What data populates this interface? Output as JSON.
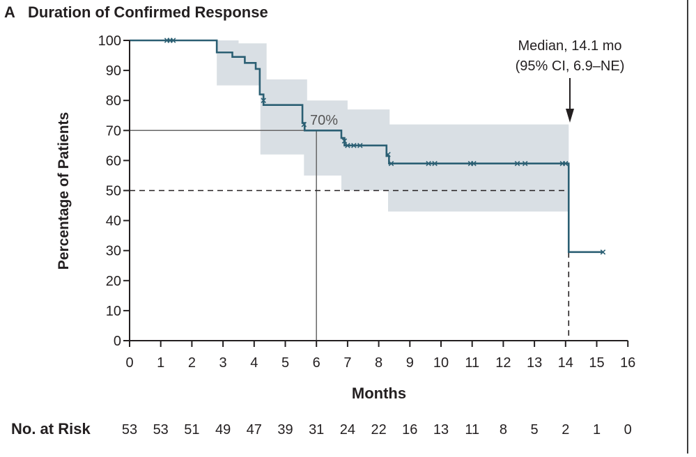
{
  "panel": {
    "letter": "A",
    "title": "Duration of Confirmed Response"
  },
  "colors": {
    "curve": "#2b5f73",
    "ci_band": "#d9dfe4",
    "axis": "#231f20",
    "reference": "#666666"
  },
  "chart_data": {
    "type": "line",
    "title": "Duration of Confirmed Response",
    "xlabel": "Months",
    "ylabel": "Percentage of Patients",
    "xlim": [
      0,
      16
    ],
    "ylim": [
      0,
      100
    ],
    "x_ticks": [
      0,
      1,
      2,
      3,
      4,
      5,
      6,
      7,
      8,
      9,
      10,
      11,
      12,
      13,
      14,
      15,
      16
    ],
    "y_ticks": [
      0,
      10,
      20,
      30,
      40,
      50,
      60,
      70,
      80,
      90,
      100
    ],
    "grid": false,
    "series": [
      {
        "style": "step",
        "points": [
          [
            0,
            100
          ],
          [
            2.8,
            100
          ],
          [
            2.8,
            96
          ],
          [
            3.3,
            96
          ],
          [
            3.3,
            94.5
          ],
          [
            3.7,
            94.5
          ],
          [
            3.7,
            92.5
          ],
          [
            4.05,
            92.5
          ],
          [
            4.05,
            90.5
          ],
          [
            4.18,
            90.5
          ],
          [
            4.18,
            82
          ],
          [
            4.3,
            82
          ],
          [
            4.3,
            78.5
          ],
          [
            5.55,
            78.5
          ],
          [
            5.55,
            72.5
          ],
          [
            5.62,
            72.5
          ],
          [
            5.62,
            70
          ],
          [
            6.8,
            70
          ],
          [
            6.8,
            67.5
          ],
          [
            6.9,
            67.5
          ],
          [
            6.9,
            65
          ],
          [
            8.25,
            65
          ],
          [
            8.25,
            61.5
          ],
          [
            8.33,
            61.5
          ],
          [
            8.33,
            59
          ],
          [
            14.1,
            59
          ],
          [
            14.1,
            29.5
          ],
          [
            15.2,
            29.5
          ]
        ],
        "censored": [
          [
            1.2,
            100
          ],
          [
            1.3,
            100
          ],
          [
            1.4,
            100
          ],
          [
            4.3,
            80
          ],
          [
            5.6,
            72
          ],
          [
            6.9,
            66.5
          ],
          [
            7.0,
            65
          ],
          [
            7.2,
            65
          ],
          [
            7.4,
            65
          ],
          [
            8.3,
            62
          ],
          [
            8.4,
            59
          ],
          [
            9.6,
            59
          ],
          [
            9.8,
            59
          ],
          [
            10.95,
            59
          ],
          [
            11.05,
            59
          ],
          [
            12.45,
            59
          ],
          [
            12.7,
            59
          ],
          [
            13.9,
            59
          ],
          [
            14.0,
            59
          ],
          [
            15.2,
            29.5
          ]
        ]
      }
    ],
    "confidence_band": [
      [
        2.8,
        100,
        100
      ],
      [
        2.8,
        85,
        100
      ],
      [
        3.5,
        85,
        100
      ],
      [
        3.5,
        85,
        99
      ],
      [
        4.2,
        85,
        99
      ],
      [
        4.2,
        62,
        99
      ],
      [
        4.4,
        62,
        99
      ],
      [
        4.4,
        62,
        87
      ],
      [
        5.6,
        62,
        87
      ],
      [
        5.6,
        55,
        87
      ],
      [
        5.7,
        55,
        87
      ],
      [
        5.7,
        55,
        80
      ],
      [
        6.8,
        55,
        80
      ],
      [
        6.8,
        50,
        80
      ],
      [
        7.0,
        50,
        80
      ],
      [
        7.0,
        50,
        77
      ],
      [
        8.3,
        50,
        77
      ],
      [
        8.3,
        43,
        77
      ],
      [
        8.35,
        43,
        77
      ],
      [
        8.35,
        43,
        72
      ],
      [
        14.1,
        43,
        72
      ]
    ],
    "reference_lines": {
      "at_6_months": {
        "x": 6,
        "y": 70,
        "label": "70%"
      },
      "median_line": {
        "y": 50,
        "x": 14.1
      }
    },
    "annotation": {
      "line1": "Median, 14.1 mo",
      "line2": "(95% CI, 6.9–NE)",
      "x": 14.1
    },
    "at_risk": {
      "label": "No. at Risk",
      "values": [
        53,
        53,
        51,
        49,
        47,
        39,
        31,
        24,
        22,
        16,
        13,
        11,
        8,
        5,
        2,
        1,
        0
      ]
    }
  }
}
